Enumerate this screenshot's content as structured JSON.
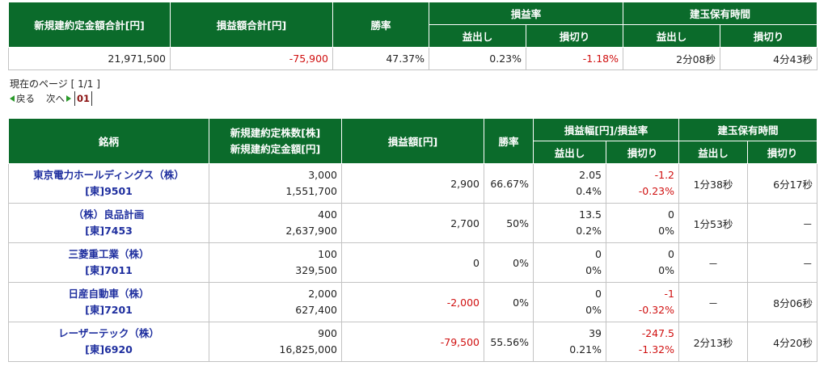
{
  "summary": {
    "headers": {
      "total_amount": "新規建約定金額合計[円]",
      "total_pnl": "損益額合計[円]",
      "win_rate": "勝率",
      "pnl_rate": "損益率",
      "hold_time": "建玉保有時間",
      "profit": "益出し",
      "loss": "損切り"
    },
    "values": {
      "total_amount": "21,971,500",
      "total_pnl": "-75,900",
      "win_rate": "47.37%",
      "rate_profit": "0.23%",
      "rate_loss": "-1.18%",
      "time_profit": "2分08秒",
      "time_loss": "4分43秒"
    }
  },
  "pager": {
    "current_label": "現在のページ [ 1/1 ]",
    "back": "戻る",
    "next": "次へ",
    "page": "01"
  },
  "main": {
    "headers": {
      "stock": "銘柄",
      "qty": "新規建約定株数[株]",
      "amount": "新規建約定金額[円]",
      "pnl": "損益額[円]",
      "win_rate": "勝率",
      "width_rate": "損益幅[円]/損益率",
      "hold_time": "建玉保有時間",
      "profit": "益出し",
      "loss": "損切り"
    },
    "rows": [
      {
        "name": "東京電力ホールディングス（株）",
        "code": "[東]9501",
        "qty": "3,000",
        "amount": "1,551,700",
        "pnl": "2,900",
        "win": "66.67%",
        "p_w": "2.05",
        "p_r": "0.4%",
        "l_w": "-1.2",
        "l_r": "-0.23%",
        "t_p": "1分38秒",
        "t_l": "6分17秒"
      },
      {
        "name": "（株）良品計画",
        "code": "[東]7453",
        "qty": "400",
        "amount": "2,637,900",
        "pnl": "2,700",
        "win": "50%",
        "p_w": "13.5",
        "p_r": "0.2%",
        "l_w": "0",
        "l_r": "0%",
        "t_p": "1分53秒",
        "t_l": "－"
      },
      {
        "name": "三菱重工業（株）",
        "code": "[東]7011",
        "qty": "100",
        "amount": "329,500",
        "pnl": "0",
        "win": "0%",
        "p_w": "0",
        "p_r": "0%",
        "l_w": "0",
        "l_r": "0%",
        "t_p": "－",
        "t_l": "－"
      },
      {
        "name": "日産自動車（株）",
        "code": "[東]7201",
        "qty": "2,000",
        "amount": "627,400",
        "pnl": "-2,000",
        "win": "0%",
        "p_w": "0",
        "p_r": "0%",
        "l_w": "-1",
        "l_r": "-0.32%",
        "t_p": "－",
        "t_l": "8分06秒"
      },
      {
        "name": "レーザーテック（株）",
        "code": "[東]6920",
        "qty": "900",
        "amount": "16,825,000",
        "pnl": "-79,500",
        "win": "55.56%",
        "p_w": "39",
        "p_r": "0.21%",
        "l_w": "-247.5",
        "l_r": "-1.32%",
        "t_p": "2分13秒",
        "t_l": "4分20秒"
      }
    ]
  }
}
